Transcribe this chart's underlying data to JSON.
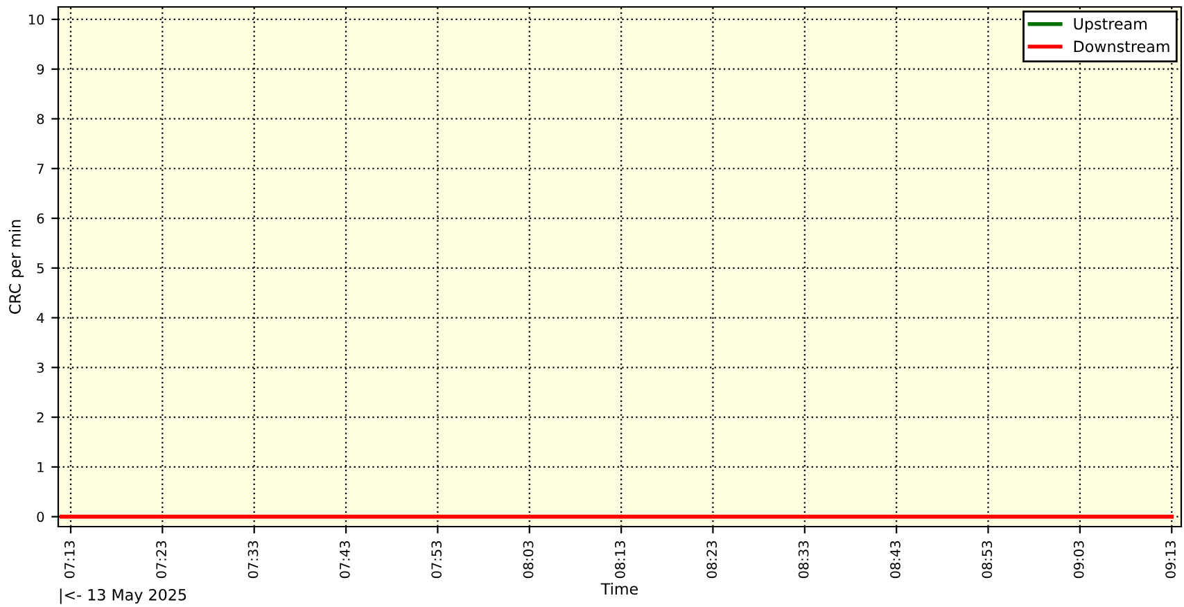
{
  "chart_data": {
    "type": "line",
    "xlabel": "Time",
    "ylabel": "CRC per min",
    "annotations": [
      "|<- 13 May 2025"
    ],
    "x": [
      7.2,
      9.2167
    ],
    "series": [
      {
        "name": "Upstream",
        "color": "#007000",
        "values": [
          null,
          null
        ]
      },
      {
        "name": "Downstream",
        "color": "#ff0000",
        "values": [
          0,
          0
        ]
      }
    ],
    "xlim": [
      7.194,
      9.234
    ],
    "ylim": [
      -0.2,
      10.25
    ],
    "xticks": [
      {
        "value": 7.2167,
        "label": "07:13"
      },
      {
        "value": 7.3833,
        "label": "07:23"
      },
      {
        "value": 7.55,
        "label": "07:33"
      },
      {
        "value": 7.7167,
        "label": "07:43"
      },
      {
        "value": 7.8833,
        "label": "07:53"
      },
      {
        "value": 8.05,
        "label": "08:03"
      },
      {
        "value": 8.2167,
        "label": "08:13"
      },
      {
        "value": 8.3833,
        "label": "08:23"
      },
      {
        "value": 8.55,
        "label": "08:33"
      },
      {
        "value": 8.7167,
        "label": "08:43"
      },
      {
        "value": 8.8833,
        "label": "08:53"
      },
      {
        "value": 9.05,
        "label": "09:03"
      },
      {
        "value": 9.2167,
        "label": "09:13"
      }
    ],
    "yticks": [
      0,
      1,
      2,
      3,
      4,
      5,
      6,
      7,
      8,
      9,
      10
    ],
    "grid": true,
    "legend": "top right",
    "marker": "none",
    "line_style": "solid"
  }
}
